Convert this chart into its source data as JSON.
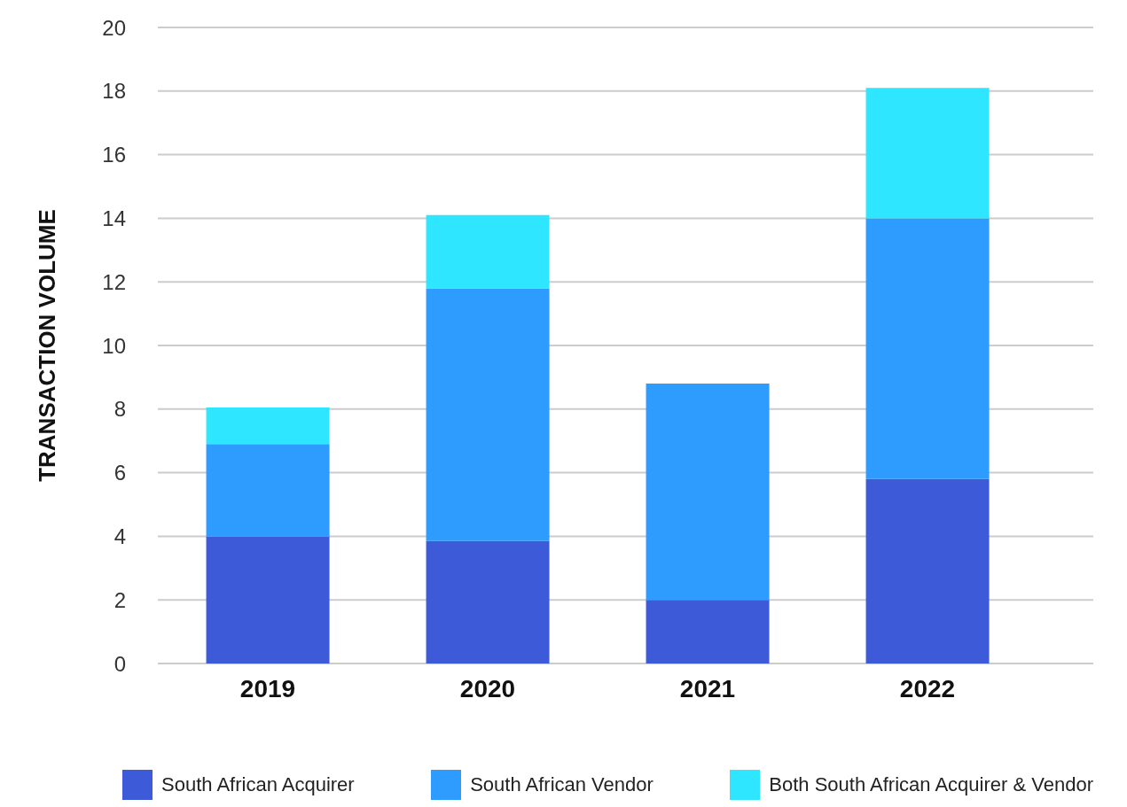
{
  "chart_data": {
    "type": "bar",
    "stacked": true,
    "ylabel": "TRANSACTION VOLUME",
    "categories": [
      "2019",
      "2020",
      "2021",
      "2022"
    ],
    "series": [
      {
        "name": "South African Acquirer",
        "color": "#3d5bd9",
        "values": [
          4,
          3.85,
          2,
          5.8
        ]
      },
      {
        "name": "South African Vendor",
        "color": "#2e9bff",
        "values": [
          2.9,
          7.95,
          6.8,
          8.2
        ]
      },
      {
        "name": "Both South African Acquirer & Vendor",
        "color": "#2ee6ff",
        "values": [
          1.15,
          2.3,
          0,
          4.1
        ]
      }
    ],
    "ylim": [
      0,
      20
    ],
    "yticks": [
      0,
      2,
      4,
      6,
      8,
      10,
      12,
      14,
      16,
      18,
      20
    ],
    "grid": "y",
    "legend": "bottom"
  }
}
